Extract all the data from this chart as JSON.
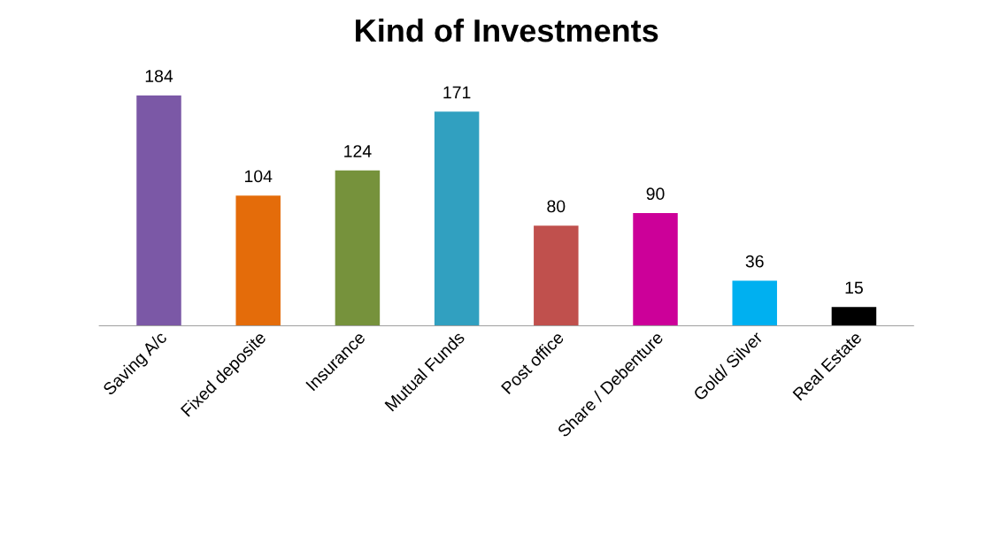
{
  "chart_data": {
    "type": "bar",
    "title": "Kind of Investments",
    "categories": [
      "Saving A/c",
      "Fixed deposite",
      "Insurance",
      "Mutual Funds",
      "Post office",
      "Share / Debenture",
      "Gold/ Silver",
      "Real Estate"
    ],
    "values": [
      184,
      104,
      124,
      171,
      80,
      90,
      36,
      15
    ],
    "colors": [
      "#7b58a6",
      "#e46c0a",
      "#76923c",
      "#31a0c0",
      "#c0504d",
      "#cc0099",
      "#00b0f0",
      "#000000"
    ],
    "data_labels": true,
    "grid": false,
    "legend": false
  }
}
